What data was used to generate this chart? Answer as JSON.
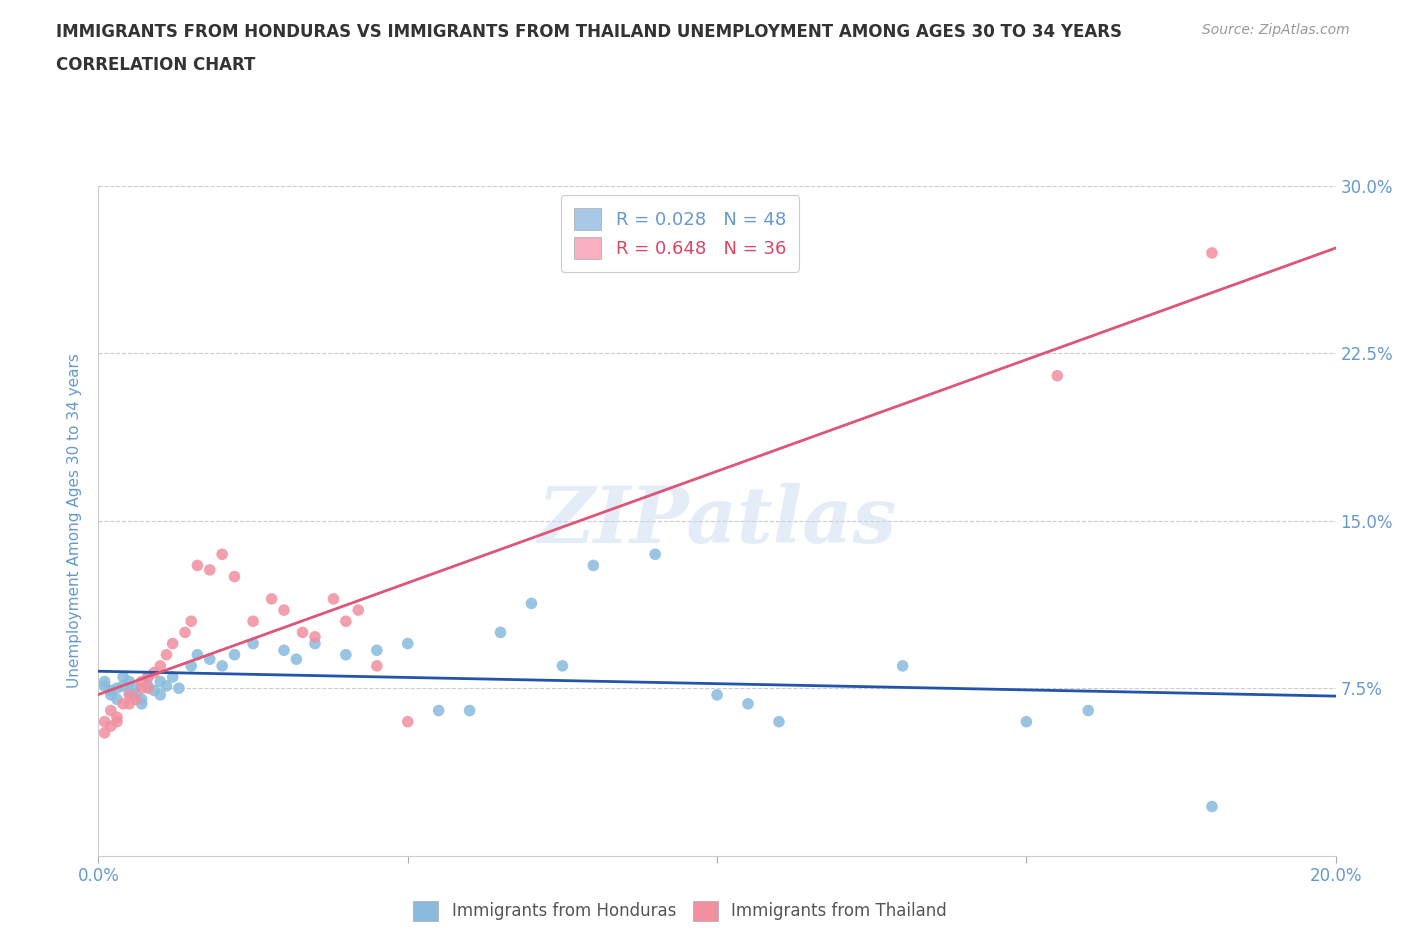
{
  "title_line1": "IMMIGRANTS FROM HONDURAS VS IMMIGRANTS FROM THAILAND UNEMPLOYMENT AMONG AGES 30 TO 34 YEARS",
  "title_line2": "CORRELATION CHART",
  "source_text": "Source: ZipAtlas.com",
  "ylabel": "Unemployment Among Ages 30 to 34 years",
  "xlim": [
    0.0,
    0.2
  ],
  "ylim": [
    0.0,
    0.3
  ],
  "yticks": [
    0.075,
    0.15,
    0.225,
    0.3
  ],
  "ytick_labels_right": [
    "7.5%",
    "15.0%",
    "22.5%",
    "30.0%"
  ],
  "xticks": [
    0.0,
    0.05,
    0.1,
    0.15,
    0.2
  ],
  "xtick_labels": [
    "0.0%",
    "",
    "",
    "",
    "20.0%"
  ],
  "legend_r_n_entries": [
    {
      "label": "R = 0.028   N = 48",
      "patch_color": "#a8c8e8"
    },
    {
      "label": "R = 0.648   N = 36",
      "patch_color": "#f8b0c0"
    }
  ],
  "bottom_legend": [
    {
      "label": "Immigrants from Honduras",
      "color": "#88bbdd"
    },
    {
      "label": "Immigrants from Thailand",
      "color": "#f090a0"
    }
  ],
  "watermark": "ZIPatlas",
  "honduras_color": "#88bbdd",
  "thailand_color": "#f090a0",
  "honduras_line_color": "#2255aa",
  "thailand_line_color": "#dd5577",
  "background_color": "#ffffff",
  "grid_color": "#cccccc",
  "title_color": "#333333",
  "tick_label_color": "#6699cc",
  "honduras_x": [
    0.001,
    0.001,
    0.002,
    0.002,
    0.003,
    0.003,
    0.004,
    0.004,
    0.005,
    0.005,
    0.006,
    0.006,
    0.007,
    0.007,
    0.008,
    0.008,
    0.009,
    0.01,
    0.01,
    0.011,
    0.012,
    0.013,
    0.015,
    0.016,
    0.018,
    0.02,
    0.022,
    0.025,
    0.03,
    0.032,
    0.035,
    0.04,
    0.045,
    0.05,
    0.055,
    0.06,
    0.065,
    0.07,
    0.075,
    0.08,
    0.09,
    0.1,
    0.105,
    0.11,
    0.13,
    0.15,
    0.16,
    0.18
  ],
  "honduras_y": [
    0.078,
    0.076,
    0.074,
    0.072,
    0.075,
    0.07,
    0.08,
    0.076,
    0.078,
    0.073,
    0.075,
    0.072,
    0.07,
    0.068,
    0.08,
    0.076,
    0.074,
    0.078,
    0.072,
    0.076,
    0.08,
    0.075,
    0.085,
    0.09,
    0.088,
    0.085,
    0.09,
    0.095,
    0.092,
    0.088,
    0.095,
    0.09,
    0.092,
    0.095,
    0.065,
    0.065,
    0.1,
    0.113,
    0.085,
    0.13,
    0.135,
    0.072,
    0.068,
    0.06,
    0.085,
    0.06,
    0.065,
    0.022
  ],
  "thailand_x": [
    0.001,
    0.001,
    0.002,
    0.002,
    0.003,
    0.003,
    0.004,
    0.005,
    0.005,
    0.006,
    0.007,
    0.007,
    0.008,
    0.008,
    0.009,
    0.01,
    0.011,
    0.012,
    0.014,
    0.015,
    0.016,
    0.018,
    0.02,
    0.022,
    0.025,
    0.028,
    0.03,
    0.033,
    0.035,
    0.038,
    0.04,
    0.042,
    0.045,
    0.05,
    0.155,
    0.18
  ],
  "thailand_y": [
    0.055,
    0.06,
    0.058,
    0.065,
    0.06,
    0.062,
    0.068,
    0.072,
    0.068,
    0.07,
    0.075,
    0.078,
    0.08,
    0.075,
    0.082,
    0.085,
    0.09,
    0.095,
    0.1,
    0.105,
    0.13,
    0.128,
    0.135,
    0.125,
    0.105,
    0.115,
    0.11,
    0.1,
    0.098,
    0.115,
    0.105,
    0.11,
    0.085,
    0.06,
    0.215,
    0.27
  ]
}
